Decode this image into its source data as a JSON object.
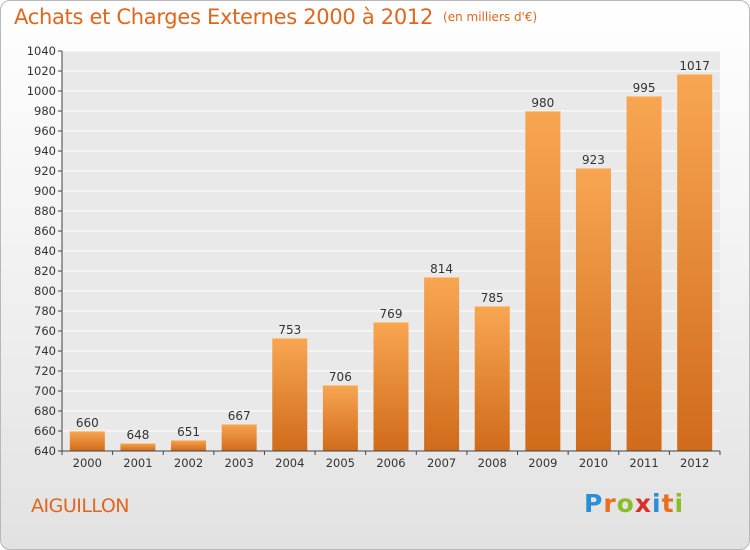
{
  "title": "Achats et Charges Externes 2000 à 2012",
  "subtitle": "(en milliers d'€)",
  "commune": "AIGUILLON",
  "logo": {
    "text": "Proxiti",
    "letters": [
      "P",
      "r",
      "o",
      "x",
      "i",
      "t",
      "i"
    ],
    "colors": [
      "#2a8fd6",
      "#e8701f",
      "#8bbd2a",
      "#d8312a",
      "#2a8fd6",
      "#e8701f",
      "#8bbd2a"
    ]
  },
  "colors": {
    "accent": "#e0661f",
    "bar_top": "#f8a652",
    "bar_bottom": "#d06b1a",
    "grid": "#ffffff",
    "axis": "#444444"
  },
  "chart_data": {
    "type": "bar",
    "title": "Achats et Charges Externes 2000 à 2012",
    "subtitle": "(en milliers d'€)",
    "categories": [
      "2000",
      "2001",
      "2002",
      "2003",
      "2004",
      "2005",
      "2006",
      "2007",
      "2008",
      "2009",
      "2010",
      "2011",
      "2012"
    ],
    "values": [
      660,
      648,
      651,
      667,
      753,
      706,
      769,
      814,
      785,
      980,
      923,
      995,
      1017
    ],
    "ylim": [
      640,
      1040
    ],
    "yticks": [
      640,
      660,
      680,
      700,
      720,
      740,
      760,
      780,
      800,
      820,
      840,
      860,
      880,
      900,
      920,
      940,
      960,
      980,
      1000,
      1020,
      1040
    ],
    "grid": true,
    "legend": "none"
  }
}
